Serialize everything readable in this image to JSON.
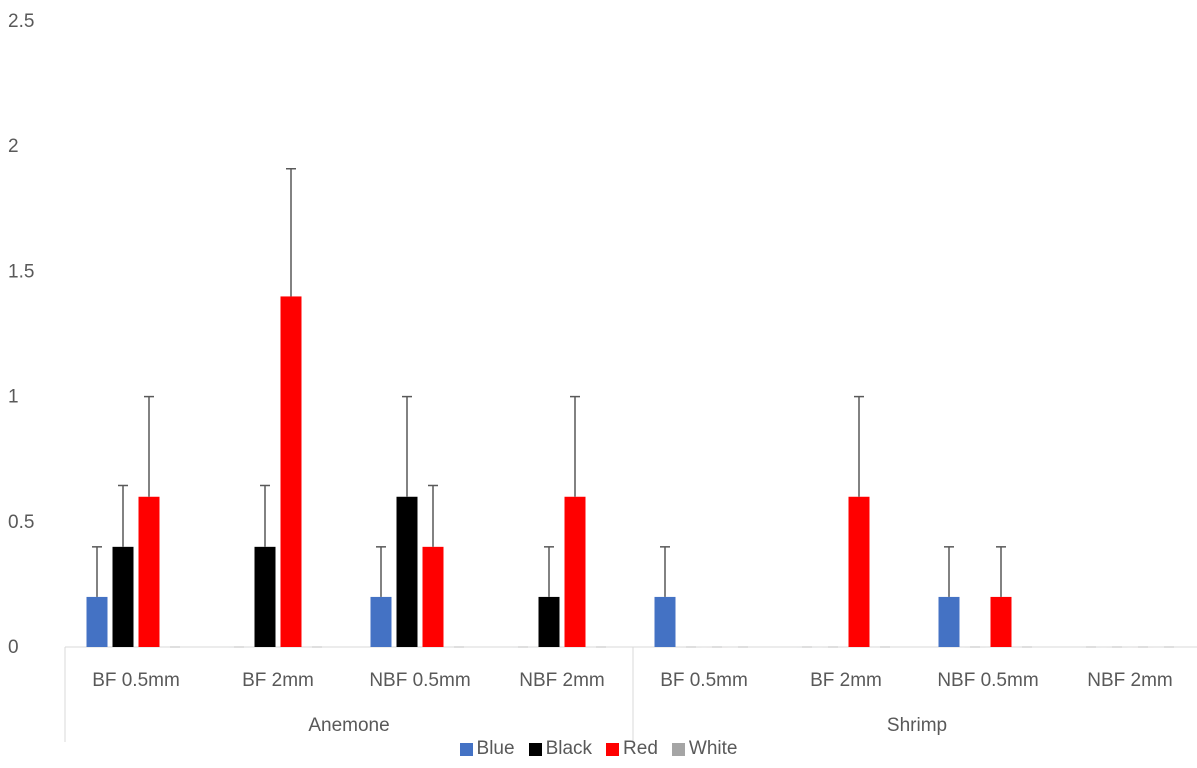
{
  "chart_data": {
    "type": "bar",
    "title": "",
    "xlabel": "",
    "ylabel": "",
    "ylim": [
      0,
      2.5
    ],
    "yticks": [
      "0",
      "0.5",
      "1",
      "1.5",
      "2",
      "2.5"
    ],
    "groups": [
      {
        "name": "Anemone",
        "categories": [
          "BF 0.5mm",
          "BF 2mm",
          "NBF 0.5mm",
          "NBF 2mm"
        ]
      },
      {
        "name": "Shrimp",
        "categories": [
          "BF 0.5mm",
          "BF 2mm",
          "NBF 0.5mm",
          "NBF 2mm"
        ]
      }
    ],
    "series": [
      {
        "name": "Blue",
        "color": "#4472C4",
        "values": [
          0.2,
          0,
          0.2,
          0,
          0.2,
          0,
          0.2,
          0
        ],
        "errors": [
          0.2,
          0,
          0.2,
          0,
          0.2,
          0,
          0.2,
          0
        ]
      },
      {
        "name": "Black",
        "color": "#000000",
        "values": [
          0.4,
          0.4,
          0.6,
          0.2,
          0,
          0,
          0,
          0
        ],
        "errors": [
          0.245,
          0.245,
          0.4,
          0.2,
          0,
          0,
          0,
          0
        ]
      },
      {
        "name": "Red",
        "color": "#FF0000",
        "values": [
          0.6,
          1.4,
          0.4,
          0.6,
          0,
          0.6,
          0.2,
          0
        ],
        "errors": [
          0.4,
          0.51,
          0.245,
          0.4,
          0,
          0.4,
          0.2,
          0
        ]
      },
      {
        "name": "White",
        "color": "#A5A5A5",
        "values": [
          0,
          0,
          0,
          0,
          0,
          0,
          0,
          0
        ],
        "errors": [
          0,
          0,
          0,
          0,
          0,
          0,
          0,
          0
        ]
      }
    ],
    "grid": false,
    "legend": "bottom"
  }
}
